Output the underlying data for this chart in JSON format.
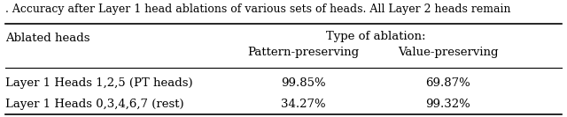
{
  "caption": ". Accuracy after Layer 1 head ablations of various sets of heads. All Layer 2 heads remain",
  "col_header_top": "Type of ablation:",
  "col_header_left": "Ablated heads",
  "col_header_pp": "Pattern-preserving",
  "col_header_vp": "Value-preserving",
  "row1_label": "Layer 1 Heads 1,2,5 (PT heads)",
  "row1_pp": "99.85%",
  "row1_vp": "69.87%",
  "row2_label": "Layer 1 Heads 0,3,4,6,7 (rest)",
  "row2_pp": "34.27%",
  "row2_vp": "99.32%",
  "bg_color": "#ffffff",
  "text_color": "#000000",
  "font_size": 9.5,
  "caption_font_size": 9.0
}
